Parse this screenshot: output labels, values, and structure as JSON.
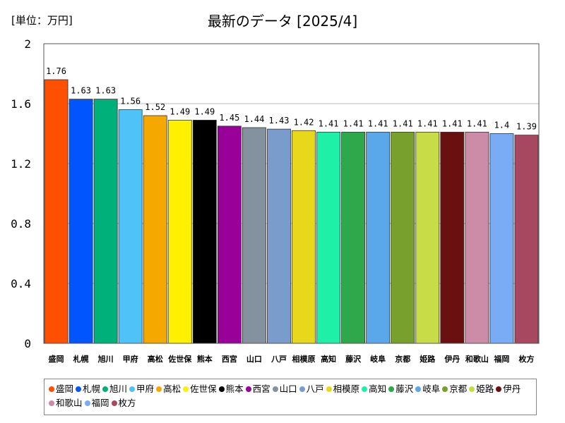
{
  "unit_label": "[単位：万円]",
  "chart_data": {
    "type": "bar",
    "title": "最新のデータ [2025/4]",
    "ylabel": "",
    "xlabel": "",
    "ylim": [
      0,
      2
    ],
    "yticks": [
      "0",
      "0.4",
      "0.8",
      "1.2",
      "1.6",
      "2"
    ],
    "grid": true,
    "legend": "bottom",
    "categories": [
      "盛岡",
      "札幌",
      "旭川",
      "甲府",
      "高松",
      "佐世保",
      "熊本",
      "西宮",
      "山口",
      "八戸",
      "相模原",
      "高知",
      "藤沢",
      "岐阜",
      "京都",
      "姫路",
      "伊丹",
      "和歌山",
      "福岡",
      "枚方"
    ],
    "values": [
      1.76,
      1.63,
      1.63,
      1.56,
      1.52,
      1.49,
      1.49,
      1.45,
      1.44,
      1.43,
      1.42,
      1.41,
      1.41,
      1.41,
      1.41,
      1.41,
      1.41,
      1.41,
      1.4,
      1.39
    ],
    "value_labels": [
      "1.76",
      "1.63",
      "1.63",
      "1.56",
      "1.52",
      "1.49",
      "1.49",
      "1.45",
      "1.44",
      "1.43",
      "1.42",
      "1.41",
      "1.41",
      "1.41",
      "1.41",
      "1.41",
      "1.41",
      "1.41",
      "1.4",
      "1.39"
    ],
    "colors": [
      "#ff4f00",
      "#0055ff",
      "#00b07a",
      "#4fc3f7",
      "#f5a800",
      "#fff000",
      "#000000",
      "#990099",
      "#8492a0",
      "#7a9ccc",
      "#e8d81c",
      "#1ff0a8",
      "#2ea84a",
      "#5aa8ea",
      "#78a02c",
      "#c8dc48",
      "#6a1010",
      "#cc8ca8",
      "#78acf4",
      "#a84860"
    ]
  }
}
